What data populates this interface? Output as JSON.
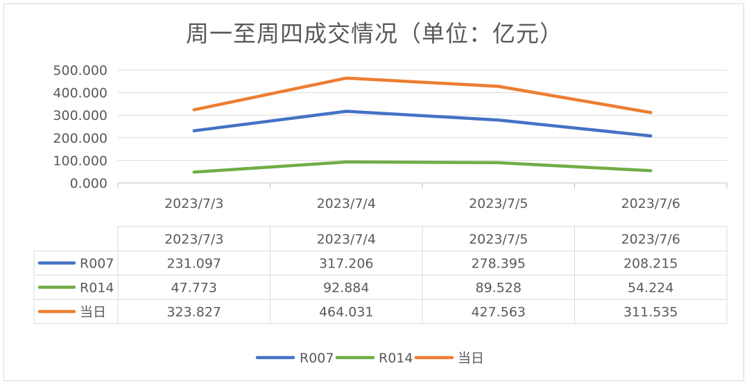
{
  "chart_data": {
    "type": "line",
    "title": "周一至周四成交情况（单位：亿元）",
    "categories": [
      "2023/7/3",
      "2023/7/4",
      "2023/7/5",
      "2023/7/6"
    ],
    "ylim": [
      0,
      500
    ],
    "yticks": [
      "0.000",
      "100.000",
      "200.000",
      "300.000",
      "400.000",
      "500.000"
    ],
    "grid": true,
    "legend_position": "bottom",
    "series": [
      {
        "name": "R007",
        "color": "#4472c4",
        "values": [
          231.097,
          317.206,
          278.395,
          208.215
        ],
        "labels": [
          "231.097",
          "317.206",
          "278.395",
          "208.215"
        ]
      },
      {
        "name": "R014",
        "color": "#70ad47",
        "values": [
          47.773,
          92.884,
          89.528,
          54.224
        ],
        "labels": [
          "47.773",
          "92.884",
          "89.528",
          "54.224"
        ]
      },
      {
        "name": "当日",
        "color": "#ed7d31",
        "values": [
          323.827,
          464.031,
          427.563,
          311.535
        ],
        "labels": [
          "323.827",
          "464.031",
          "427.563",
          "311.535"
        ]
      }
    ]
  }
}
